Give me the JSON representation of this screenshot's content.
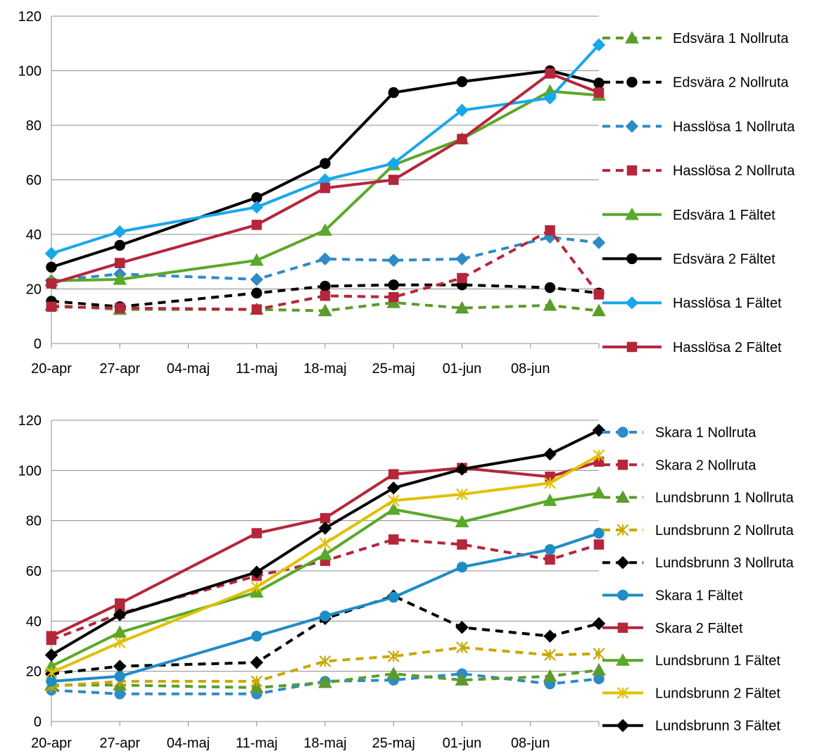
{
  "chart_data": [
    {
      "type": "line",
      "title": "",
      "xlabel": "",
      "ylabel": "",
      "x_tick_labels": [
        "20-apr",
        "27-apr",
        "04-maj",
        "11-maj",
        "18-maj",
        "25-maj",
        "01-jun",
        "08-jun"
      ],
      "y_ticks": [
        "0",
        "20",
        "40",
        "60",
        "80",
        "100",
        "120"
      ],
      "xlim": [
        "2014-04-20",
        "2014-06-15"
      ],
      "ylim": [
        0,
        120
      ],
      "grid": "horizontal",
      "legend_position": "right",
      "series": [
        {
          "name": "Edsvära 1 Nollruta",
          "color": "#5b9b2c",
          "dash": true,
          "marker": "triangle",
          "x": [
            "2014-04-20",
            "2014-04-27",
            "2014-05-11",
            "2014-05-18",
            "2014-05-25",
            "2014-06-01",
            "2014-06-10",
            "2014-06-15"
          ],
          "y": [
            14,
            12.5,
            12.5,
            12,
            15,
            13,
            14,
            12
          ]
        },
        {
          "name": "Edsvära 2 Nollruta",
          "color": "#000000",
          "dash": true,
          "marker": "circle",
          "x": [
            "2014-04-20",
            "2014-04-27",
            "2014-05-11",
            "2014-05-18",
            "2014-05-25",
            "2014-06-01",
            "2014-06-10",
            "2014-06-15"
          ],
          "y": [
            15.5,
            13.5,
            18.5,
            21,
            21.5,
            21.5,
            20.5,
            18.5
          ]
        },
        {
          "name": "Hasslösa 1 Nollruta",
          "color": "#2e8bc6",
          "dash": true,
          "marker": "diamond",
          "x": [
            "2014-04-20",
            "2014-04-27",
            "2014-05-11",
            "2014-05-18",
            "2014-05-25",
            "2014-06-01",
            "2014-06-10",
            "2014-06-15"
          ],
          "y": [
            23,
            25.5,
            23.5,
            31,
            30.5,
            31,
            39,
            37
          ]
        },
        {
          "name": "Hasslösa 2 Nollruta",
          "color": "#b5263b",
          "dash": true,
          "marker": "square",
          "x": [
            "2014-04-20",
            "2014-04-27",
            "2014-05-11",
            "2014-05-18",
            "2014-05-25",
            "2014-06-01",
            "2014-06-10",
            "2014-06-15"
          ],
          "y": [
            13.5,
            13,
            12.5,
            17.5,
            17,
            24,
            41.5,
            18
          ]
        },
        {
          "name": "Edsvära 1 Fältet",
          "color": "#5aa829",
          "dash": false,
          "marker": "triangle",
          "x": [
            "2014-04-20",
            "2014-04-27",
            "2014-05-11",
            "2014-05-18",
            "2014-05-25",
            "2014-06-01",
            "2014-06-10",
            "2014-06-15"
          ],
          "y": [
            23,
            23.5,
            30.5,
            41.5,
            65.5,
            75,
            92.5,
            91
          ]
        },
        {
          "name": "Edsvära 2 Fältet",
          "color": "#000000",
          "dash": false,
          "marker": "circle",
          "x": [
            "2014-04-20",
            "2014-04-27",
            "2014-05-11",
            "2014-05-18",
            "2014-05-25",
            "2014-06-01",
            "2014-06-10",
            "2014-06-15"
          ],
          "y": [
            28,
            36,
            53.5,
            66,
            92,
            96,
            100,
            95.5
          ]
        },
        {
          "name": "Hasslösa 1 Fältet",
          "color": "#19a7eb",
          "dash": false,
          "marker": "diamond",
          "x": [
            "2014-04-20",
            "2014-04-27",
            "2014-05-11",
            "2014-05-18",
            "2014-05-25",
            "2014-06-01",
            "2014-06-10",
            "2014-06-15"
          ],
          "y": [
            33,
            41,
            50,
            60,
            66,
            85.5,
            90,
            109.5
          ]
        },
        {
          "name": "Hasslösa 2 Fältet",
          "color": "#b5263b",
          "dash": false,
          "marker": "square",
          "x": [
            "2014-04-20",
            "2014-04-27",
            "2014-05-11",
            "2014-05-18",
            "2014-05-25",
            "2014-06-01",
            "2014-06-10",
            "2014-06-15"
          ],
          "y": [
            22,
            29.5,
            43.5,
            57,
            60,
            75,
            99,
            92
          ]
        }
      ]
    },
    {
      "type": "line",
      "title": "",
      "xlabel": "",
      "ylabel": "",
      "x_tick_labels": [
        "20-apr",
        "27-apr",
        "04-maj",
        "11-maj",
        "18-maj",
        "25-maj",
        "01-jun",
        "08-jun"
      ],
      "y_ticks": [
        "0",
        "20",
        "40",
        "60",
        "80",
        "100",
        "120"
      ],
      "xlim": [
        "2014-04-20",
        "2014-06-15"
      ],
      "ylim": [
        0,
        120
      ],
      "grid": "horizontal",
      "legend_position": "right",
      "series": [
        {
          "name": "Skara 1 Nollruta",
          "color": "#2e8bc6",
          "dash": true,
          "marker": "circle",
          "x": [
            "2014-04-20",
            "2014-04-27",
            "2014-05-11",
            "2014-05-18",
            "2014-05-25",
            "2014-06-01",
            "2014-06-10",
            "2014-06-15"
          ],
          "y": [
            12.5,
            11,
            11,
            16,
            16.5,
            19,
            15,
            17
          ]
        },
        {
          "name": "Skara 2 Nollruta",
          "color": "#b5263b",
          "dash": true,
          "marker": "square",
          "x": [
            "2014-04-20",
            "2014-04-27",
            "2014-05-11",
            "2014-05-18",
            "2014-05-25",
            "2014-06-01",
            "2014-06-10",
            "2014-06-15"
          ],
          "y": [
            32.5,
            43,
            58,
            64,
            72.5,
            70.5,
            64.5,
            70.5
          ]
        },
        {
          "name": "Lundsbrunn 1 Nollruta",
          "color": "#5b9b2c",
          "dash": true,
          "marker": "triangle",
          "x": [
            "2014-04-20",
            "2014-04-27",
            "2014-05-11",
            "2014-05-18",
            "2014-05-25",
            "2014-06-01",
            "2014-06-10",
            "2014-06-15"
          ],
          "y": [
            14.5,
            14.5,
            13.5,
            15.5,
            19,
            16.5,
            18,
            20.5
          ]
        },
        {
          "name": "Lundsbrunn 2 Nollruta",
          "color": "#c9a800",
          "dash": true,
          "marker": "asterisk",
          "x": [
            "2014-04-20",
            "2014-04-27",
            "2014-05-11",
            "2014-05-18",
            "2014-05-25",
            "2014-06-01",
            "2014-06-10",
            "2014-06-15"
          ],
          "y": [
            14,
            16,
            16,
            24,
            26,
            29.5,
            26.5,
            27
          ]
        },
        {
          "name": "Lundsbrunn 3 Nollruta",
          "color": "#000000",
          "dash": true,
          "marker": "diamond",
          "x": [
            "2014-04-20",
            "2014-04-27",
            "2014-05-11",
            "2014-05-18",
            "2014-05-25",
            "2014-06-01",
            "2014-06-10",
            "2014-06-15"
          ],
          "y": [
            19,
            22,
            23.5,
            41,
            50,
            37.5,
            34,
            39
          ]
        },
        {
          "name": "Skara 1 Fältet",
          "color": "#1f8cc6",
          "dash": false,
          "marker": "circle",
          "x": [
            "2014-04-20",
            "2014-04-27",
            "2014-05-11",
            "2014-05-18",
            "2014-05-25",
            "2014-06-01",
            "2014-06-10",
            "2014-06-15"
          ],
          "y": [
            16,
            18,
            34,
            42,
            49.5,
            61.5,
            68.5,
            75
          ]
        },
        {
          "name": "Skara 2 Fältet",
          "color": "#b5263b",
          "dash": false,
          "marker": "square",
          "x": [
            "2014-04-20",
            "2014-04-27",
            "2014-05-11",
            "2014-05-18",
            "2014-05-25",
            "2014-06-01",
            "2014-06-10",
            "2014-06-15"
          ],
          "y": [
            34,
            47,
            75,
            81,
            98.5,
            101,
            97.5,
            103.5
          ]
        },
        {
          "name": "Lundsbrunn 1 Fältet",
          "color": "#5aa829",
          "dash": false,
          "marker": "triangle",
          "x": [
            "2014-04-20",
            "2014-04-27",
            "2014-05-11",
            "2014-05-18",
            "2014-05-25",
            "2014-06-01",
            "2014-06-10",
            "2014-06-15"
          ],
          "y": [
            22,
            35.5,
            51.5,
            66.5,
            84.5,
            79.5,
            88,
            91
          ]
        },
        {
          "name": "Lundsbrunn 2 Fältet",
          "color": "#e0c000",
          "dash": false,
          "marker": "asterisk",
          "x": [
            "2014-04-20",
            "2014-04-27",
            "2014-05-11",
            "2014-05-18",
            "2014-05-25",
            "2014-06-01",
            "2014-06-10",
            "2014-06-15"
          ],
          "y": [
            19.5,
            31.5,
            53.5,
            71,
            88,
            90.5,
            95,
            106
          ]
        },
        {
          "name": "Lundsbrunn 3 Fältet",
          "color": "#000000",
          "dash": false,
          "marker": "diamond",
          "x": [
            "2014-04-20",
            "2014-04-27",
            "2014-05-11",
            "2014-05-18",
            "2014-05-25",
            "2014-06-01",
            "2014-06-10",
            "2014-06-15"
          ],
          "y": [
            26.5,
            42.5,
            59.5,
            77,
            93,
            100.5,
            106.5,
            116
          ]
        }
      ]
    }
  ]
}
